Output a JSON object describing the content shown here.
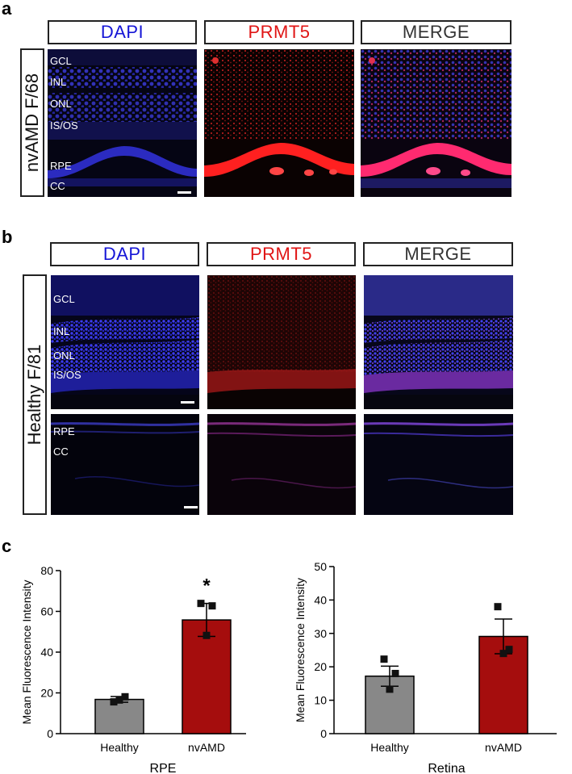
{
  "panel_a": {
    "letter": "a",
    "headers": [
      "DAPI",
      "PRMT5",
      "MERGE"
    ],
    "sample_label": "nvAMD F/68",
    "layers": [
      "GCL",
      "INL",
      "ONL",
      "IS/OS",
      "RPE",
      "CC"
    ]
  },
  "panel_b": {
    "letter": "b",
    "headers": [
      "DAPI",
      "PRMT5",
      "MERGE"
    ],
    "sample_label": "Healthy F/81",
    "layers_top": [
      "GCL",
      "INL",
      "ONL",
      "IS/OS"
    ],
    "layers_bottom": [
      "RPE",
      "CC"
    ]
  },
  "panel_c": {
    "letter": "c"
  },
  "chart_data": [
    {
      "type": "bar",
      "title": "",
      "xlabel": "RPE",
      "ylabel": "Mean Fluorescence Intensity",
      "categories": [
        "Healthy",
        "nvAMD"
      ],
      "values": [
        16.8,
        55.8
      ],
      "errors": [
        1.4,
        8.1
      ],
      "points": [
        [
          15.6,
          18.1,
          16.5
        ],
        [
          63.9,
          62.7,
          48.2
        ]
      ],
      "colors": [
        "#888888",
        "#a50d0d"
      ],
      "ylim": [
        0,
        80
      ],
      "yticks": [
        0,
        20,
        40,
        60,
        80
      ],
      "annotation": "*"
    },
    {
      "type": "bar",
      "title": "",
      "xlabel": "Retina",
      "ylabel": "Mean Fluorescence Intensity",
      "categories": [
        "Healthy",
        "nvAMD"
      ],
      "values": [
        17.2,
        29.1
      ],
      "errors": [
        3.0,
        5.2
      ],
      "points": [
        [
          22.3,
          18.0,
          13.3
        ],
        [
          38.0,
          25.2,
          24.0
        ]
      ],
      "colors": [
        "#888888",
        "#a50d0d"
      ],
      "ylim": [
        0,
        50
      ],
      "yticks": [
        0,
        10,
        20,
        30,
        40,
        50
      ]
    }
  ]
}
